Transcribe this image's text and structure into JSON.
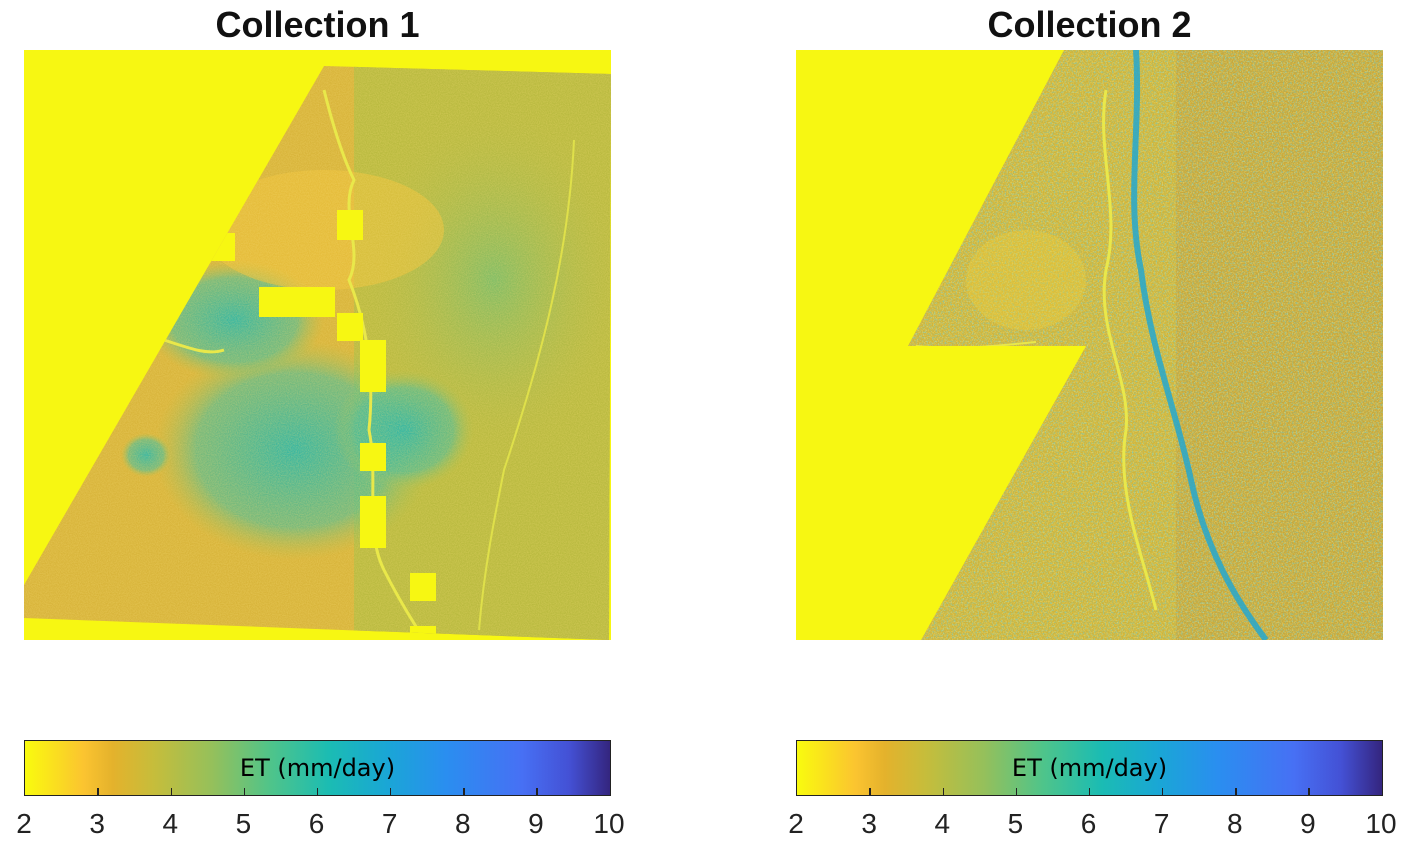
{
  "chart_data": [
    {
      "type": "heatmap",
      "title": "Collection 1",
      "colorbar": {
        "label": "ET (mm/day)",
        "range": [
          2,
          10
        ],
        "ticks": [
          2,
          3,
          4,
          5,
          6,
          7,
          8,
          9,
          10
        ],
        "colormap": [
          "#f9fb0e",
          "#fbc430",
          "#c6bd3b",
          "#4fc48a",
          "#1bbcb3",
          "#2a8ef0",
          "#4451d5",
          "#34257f"
        ]
      },
      "no_data_color": "#f7f712"
    },
    {
      "type": "heatmap",
      "title": "Collection 2",
      "colorbar": {
        "label": "ET (mm/day)",
        "range": [
          2,
          10
        ],
        "ticks": [
          2,
          3,
          4,
          5,
          6,
          7,
          8,
          9,
          10
        ],
        "colormap": [
          "#f9fb0e",
          "#fbc430",
          "#c6bd3b",
          "#4fc48a",
          "#1bbcb3",
          "#2a8ef0",
          "#4451d5",
          "#34257f"
        ]
      },
      "no_data_color": "#f7f712"
    }
  ]
}
